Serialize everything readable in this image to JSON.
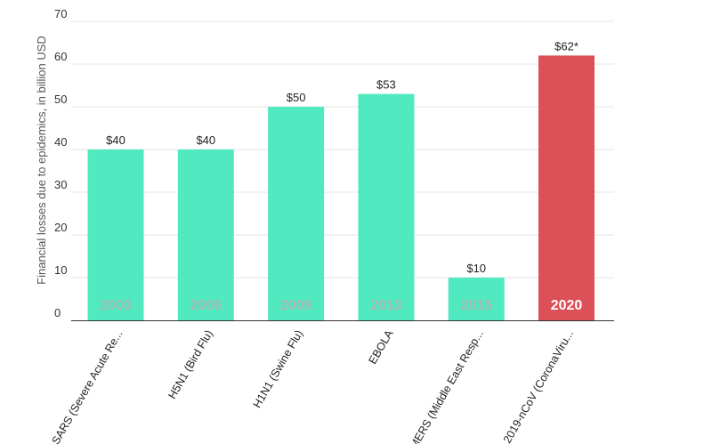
{
  "chart_data": {
    "type": "bar",
    "ylabel": "Financial losses due to epidemics, in billion USD",
    "ylim": [
      0,
      70
    ],
    "yticks": [
      0,
      10,
      20,
      30,
      40,
      50,
      60,
      70
    ],
    "grid": true,
    "categories": [
      "SARS (Severe Acute Re...",
      "H5N1 (Bird Flu)",
      "H1N1 (Swine Flu)",
      "EBOLA",
      "MERS (Middle East Resp...",
      "2019-nCoV (CoronaViru..."
    ],
    "years": [
      "2003",
      "2006",
      "2009",
      "2013",
      "2015",
      "2020"
    ],
    "values": [
      40,
      40,
      50,
      53,
      10,
      62
    ],
    "value_labels": [
      "$40",
      "$40",
      "$50",
      "$53",
      "$10",
      "$62*"
    ],
    "colors": [
      "#50e9c0",
      "#50e9c0",
      "#50e9c0",
      "#50e9c0",
      "#50e9c0",
      "#dc5057"
    ],
    "year_label_colors": [
      "#a8b8b4",
      "#a8b8b4",
      "#a8b8b4",
      "#a8b8b4",
      "#a8b8b4",
      "#ffffff"
    ],
    "gridline_color": "#e6e6e6"
  }
}
